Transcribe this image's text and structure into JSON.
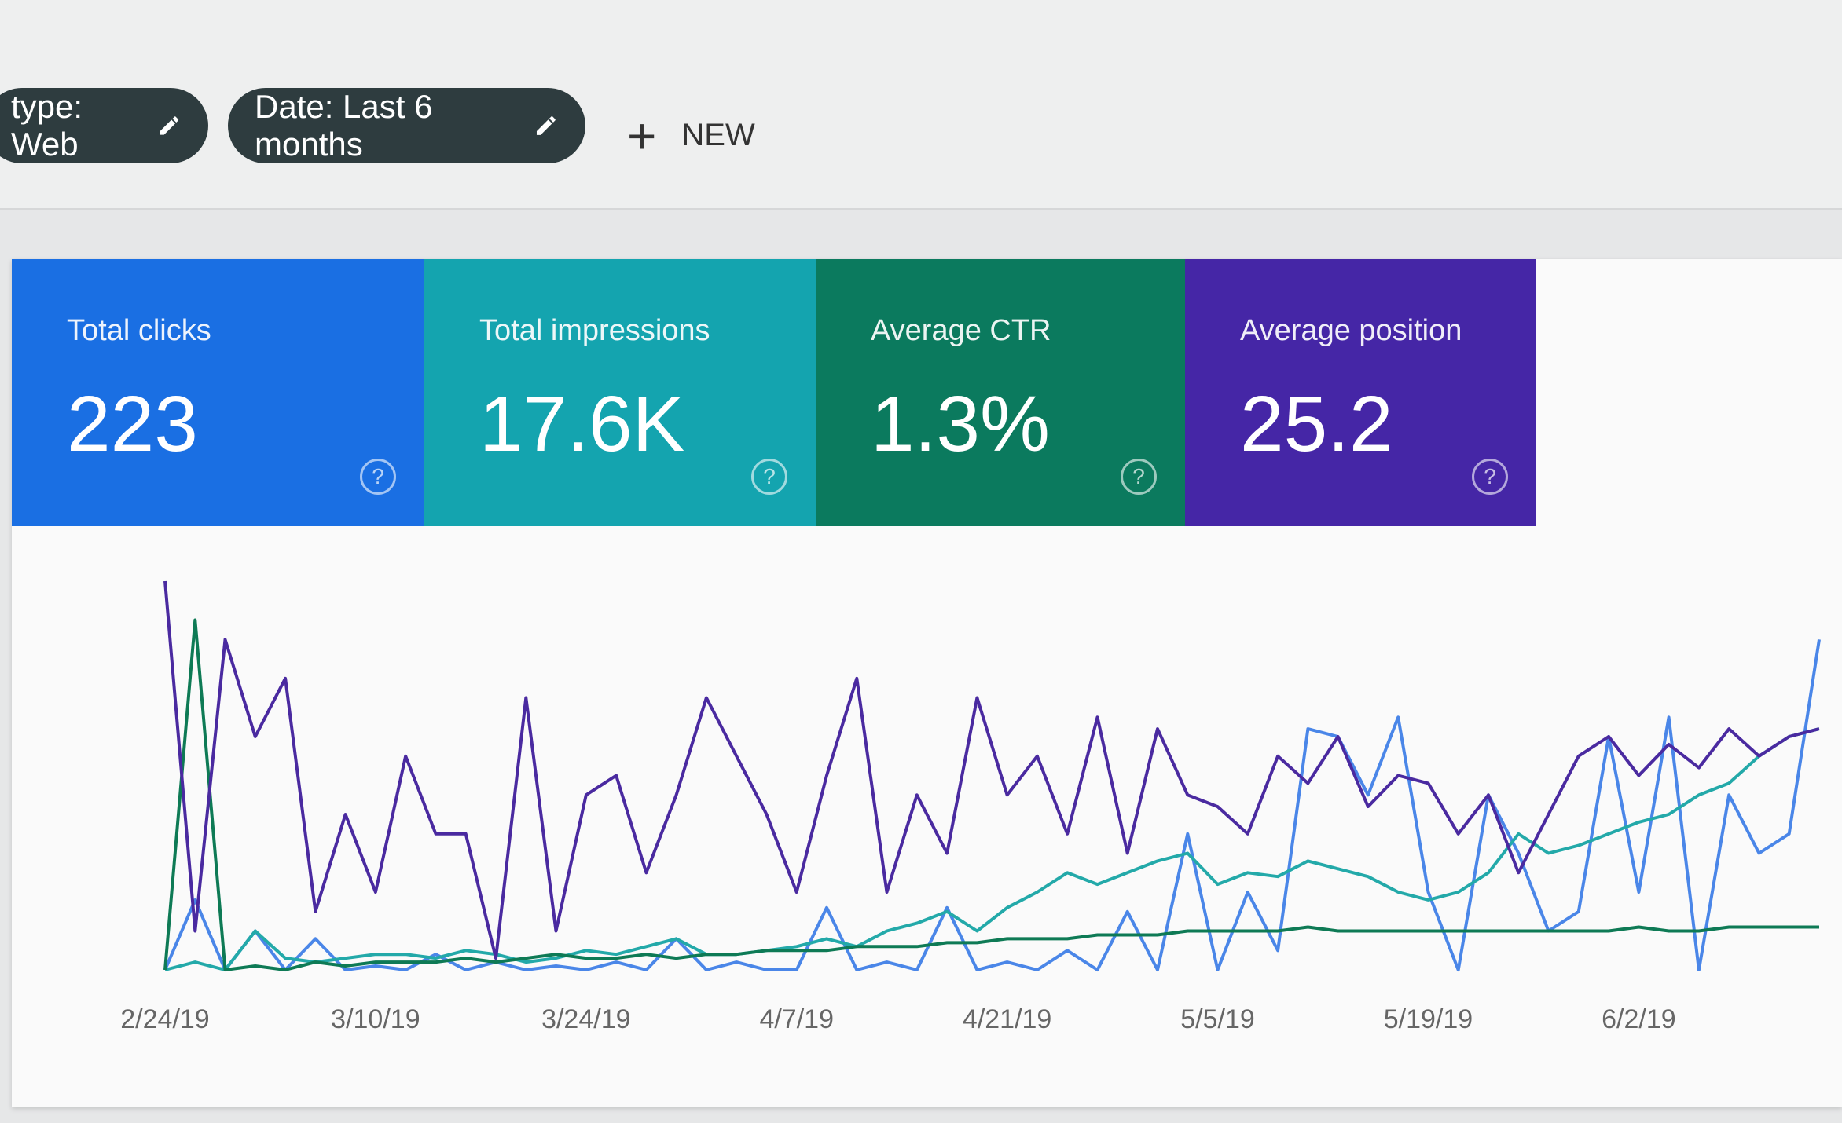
{
  "toolbar": {
    "chips": [
      {
        "label": "type: Web"
      },
      {
        "label": "Date: Last 6 months"
      }
    ],
    "new_button": {
      "label": "NEW"
    }
  },
  "cards": [
    {
      "label": "Total clicks",
      "value": "223",
      "color": "#1a6fe3"
    },
    {
      "label": "Total impressions",
      "value": "17.6K",
      "color": "#14a4af"
    },
    {
      "label": "Average CTR",
      "value": "1.3%",
      "color": "#0b7a5e"
    },
    {
      "label": "Average position",
      "value": "25.2",
      "color": "#4526a6"
    }
  ],
  "chart_data": {
    "type": "line",
    "categories": [
      "2/24/19",
      null,
      null,
      null,
      null,
      null,
      null,
      "3/10/19",
      null,
      null,
      null,
      null,
      null,
      null,
      "3/24/19",
      null,
      null,
      null,
      null,
      null,
      null,
      "4/7/19",
      null,
      null,
      null,
      null,
      null,
      null,
      "4/21/19",
      null,
      null,
      null,
      null,
      null,
      null,
      "5/5/19",
      null,
      null,
      null,
      null,
      null,
      null,
      "5/19/19",
      null,
      null,
      null,
      null,
      null,
      null,
      "6/2/19",
      null,
      null,
      null,
      null,
      null,
      null
    ],
    "ylim": [
      0,
      100
    ],
    "series": [
      {
        "name": "Total clicks",
        "color": "#4a86e8",
        "values": [
          0,
          18,
          0,
          10,
          0,
          8,
          0,
          1,
          0,
          4,
          0,
          2,
          0,
          1,
          0,
          2,
          0,
          8,
          0,
          2,
          0,
          0,
          16,
          0,
          2,
          0,
          16,
          0,
          2,
          0,
          5,
          0,
          15,
          0,
          35,
          0,
          20,
          5,
          62,
          60,
          45,
          65,
          20,
          0,
          45,
          30,
          10,
          15,
          60,
          20,
          65,
          0,
          45,
          30,
          35,
          85
        ]
      },
      {
        "name": "Total impressions",
        "color": "#23a9a9",
        "values": [
          0,
          2,
          0,
          10,
          3,
          2,
          3,
          4,
          4,
          3,
          5,
          4,
          2,
          3,
          5,
          4,
          6,
          8,
          4,
          4,
          5,
          6,
          8,
          6,
          10,
          12,
          15,
          10,
          16,
          20,
          25,
          22,
          25,
          28,
          30,
          22,
          25,
          24,
          28,
          26,
          24,
          20,
          18,
          20,
          25,
          35,
          30,
          32,
          35,
          38,
          40,
          45,
          48,
          55,
          60,
          62
        ]
      },
      {
        "name": "Average CTR",
        "color": "#0e7a55",
        "values": [
          0,
          90,
          0,
          1,
          0,
          2,
          1,
          2,
          2,
          2,
          3,
          2,
          3,
          4,
          3,
          3,
          4,
          3,
          4,
          4,
          5,
          5,
          5,
          6,
          6,
          6,
          7,
          7,
          8,
          8,
          8,
          9,
          9,
          9,
          10,
          10,
          10,
          10,
          11,
          10,
          10,
          10,
          10,
          10,
          10,
          10,
          10,
          10,
          10,
          11,
          10,
          10,
          11,
          11,
          11,
          11
        ]
      },
      {
        "name": "Average position",
        "color": "#4a2aa0",
        "values": [
          100,
          10,
          85,
          60,
          75,
          15,
          40,
          20,
          55,
          35,
          35,
          3,
          70,
          10,
          45,
          50,
          25,
          45,
          70,
          55,
          40,
          20,
          50,
          75,
          20,
          45,
          30,
          70,
          45,
          55,
          35,
          65,
          30,
          62,
          45,
          42,
          35,
          55,
          48,
          60,
          42,
          50,
          48,
          35,
          45,
          25,
          40,
          55,
          60,
          50,
          58,
          52,
          62,
          55,
          60,
          62
        ]
      }
    ]
  }
}
